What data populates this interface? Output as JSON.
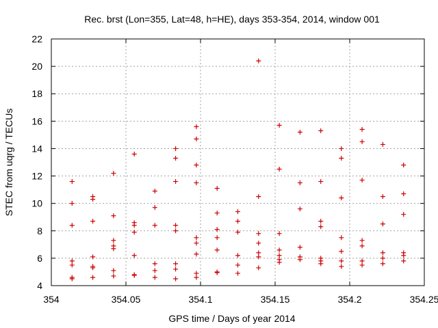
{
  "chart_data": {
    "type": "scatter",
    "title": "Rec. brst (Lon=355, Lat=48, h=HE), days 353-354, 2014, window 001",
    "xlabel": "GPS time / Days of year 2014",
    "ylabel": "STEC from uqrg / TECUs",
    "xlim": [
      354,
      354.25
    ],
    "ylim": [
      4,
      22
    ],
    "xticks": [
      354,
      354.05,
      354.1,
      354.15,
      354.2,
      354.25
    ],
    "xtick_labels": [
      "354",
      "354.05",
      "354.1",
      "354.15",
      "354.2",
      "354.25"
    ],
    "yticks": [
      4,
      6,
      8,
      10,
      12,
      14,
      16,
      18,
      20,
      22
    ],
    "ytick_labels": [
      "4",
      "6",
      "8",
      "10",
      "12",
      "14",
      "16",
      "18",
      "20",
      "22"
    ],
    "grid": true,
    "marker": "+",
    "series": [
      {
        "name": "STEC",
        "color": "#cc0000",
        "points": [
          [
            354.0139,
            11.6
          ],
          [
            354.0139,
            10.0
          ],
          [
            354.0139,
            8.4
          ],
          [
            354.0139,
            5.8
          ],
          [
            354.0139,
            5.5
          ],
          [
            354.0139,
            4.6
          ],
          [
            354.0139,
            4.5
          ],
          [
            354.0278,
            10.5
          ],
          [
            354.0278,
            10.3
          ],
          [
            354.0278,
            8.7
          ],
          [
            354.0278,
            6.1
          ],
          [
            354.0278,
            5.4
          ],
          [
            354.0278,
            5.3
          ],
          [
            354.0278,
            4.6
          ],
          [
            354.0417,
            12.2
          ],
          [
            354.0417,
            9.1
          ],
          [
            354.0417,
            7.3
          ],
          [
            354.0417,
            6.9
          ],
          [
            354.0417,
            6.7
          ],
          [
            354.0417,
            5.1
          ],
          [
            354.0417,
            4.7
          ],
          [
            354.0556,
            13.6
          ],
          [
            354.0556,
            8.6
          ],
          [
            354.0556,
            8.4
          ],
          [
            354.0556,
            7.9
          ],
          [
            354.0556,
            6.2
          ],
          [
            354.0556,
            4.8
          ],
          [
            354.0556,
            4.75
          ],
          [
            354.0694,
            10.9
          ],
          [
            354.0694,
            9.7
          ],
          [
            354.0694,
            8.4
          ],
          [
            354.0694,
            5.6
          ],
          [
            354.0694,
            5.1
          ],
          [
            354.0694,
            4.6
          ],
          [
            354.0833,
            14.0
          ],
          [
            354.0833,
            13.3
          ],
          [
            354.0833,
            11.6
          ],
          [
            354.0833,
            8.4
          ],
          [
            354.0833,
            8.0
          ],
          [
            354.0833,
            5.6
          ],
          [
            354.0833,
            5.2
          ],
          [
            354.0833,
            4.5
          ],
          [
            354.0972,
            15.6
          ],
          [
            354.0972,
            14.7
          ],
          [
            354.0972,
            12.8
          ],
          [
            354.0972,
            11.5
          ],
          [
            354.0972,
            7.5
          ],
          [
            354.0972,
            7.1
          ],
          [
            354.0972,
            6.3
          ],
          [
            354.0972,
            4.9
          ],
          [
            354.0972,
            4.6
          ],
          [
            354.1111,
            11.1
          ],
          [
            354.1111,
            9.3
          ],
          [
            354.1111,
            8.1
          ],
          [
            354.1111,
            7.5
          ],
          [
            354.1111,
            6.6
          ],
          [
            354.1111,
            5.0
          ],
          [
            354.1111,
            4.95
          ],
          [
            354.125,
            9.4
          ],
          [
            354.125,
            8.7
          ],
          [
            354.125,
            7.9
          ],
          [
            354.125,
            6.2
          ],
          [
            354.125,
            5.5
          ],
          [
            354.125,
            4.9
          ],
          [
            354.1389,
            20.4
          ],
          [
            354.1389,
            10.5
          ],
          [
            354.1389,
            7.8
          ],
          [
            354.1389,
            7.1
          ],
          [
            354.1389,
            6.4
          ],
          [
            354.1389,
            6.1
          ],
          [
            354.1389,
            5.3
          ],
          [
            354.1528,
            15.7
          ],
          [
            354.1528,
            12.5
          ],
          [
            354.1528,
            7.8
          ],
          [
            354.1528,
            6.6
          ],
          [
            354.1528,
            6.2
          ],
          [
            354.1528,
            5.9
          ],
          [
            354.1528,
            5.7
          ],
          [
            354.1667,
            15.2
          ],
          [
            354.1667,
            11.5
          ],
          [
            354.1667,
            9.6
          ],
          [
            354.1667,
            6.8
          ],
          [
            354.1667,
            6.1
          ],
          [
            354.1667,
            5.9
          ],
          [
            354.1806,
            15.3
          ],
          [
            354.1806,
            11.6
          ],
          [
            354.1806,
            8.7
          ],
          [
            354.1806,
            8.3
          ],
          [
            354.1806,
            6.0
          ],
          [
            354.1806,
            5.8
          ],
          [
            354.1806,
            5.6
          ],
          [
            354.1944,
            14.0
          ],
          [
            354.1944,
            13.3
          ],
          [
            354.1944,
            10.4
          ],
          [
            354.1944,
            7.5
          ],
          [
            354.1944,
            6.5
          ],
          [
            354.1944,
            5.8
          ],
          [
            354.1944,
            5.4
          ],
          [
            354.2083,
            15.4
          ],
          [
            354.2083,
            14.5
          ],
          [
            354.2083,
            11.7
          ],
          [
            354.2083,
            7.3
          ],
          [
            354.2083,
            6.9
          ],
          [
            354.2083,
            5.8
          ],
          [
            354.2083,
            5.5
          ],
          [
            354.2222,
            14.3
          ],
          [
            354.2222,
            10.5
          ],
          [
            354.2222,
            8.5
          ],
          [
            354.2222,
            6.4
          ],
          [
            354.2222,
            6.0
          ],
          [
            354.2222,
            5.6
          ],
          [
            354.2361,
            12.8
          ],
          [
            354.2361,
            10.7
          ],
          [
            354.2361,
            9.2
          ],
          [
            354.2361,
            6.4
          ],
          [
            354.2361,
            6.2
          ],
          [
            354.2361,
            5.8
          ]
        ]
      }
    ]
  }
}
